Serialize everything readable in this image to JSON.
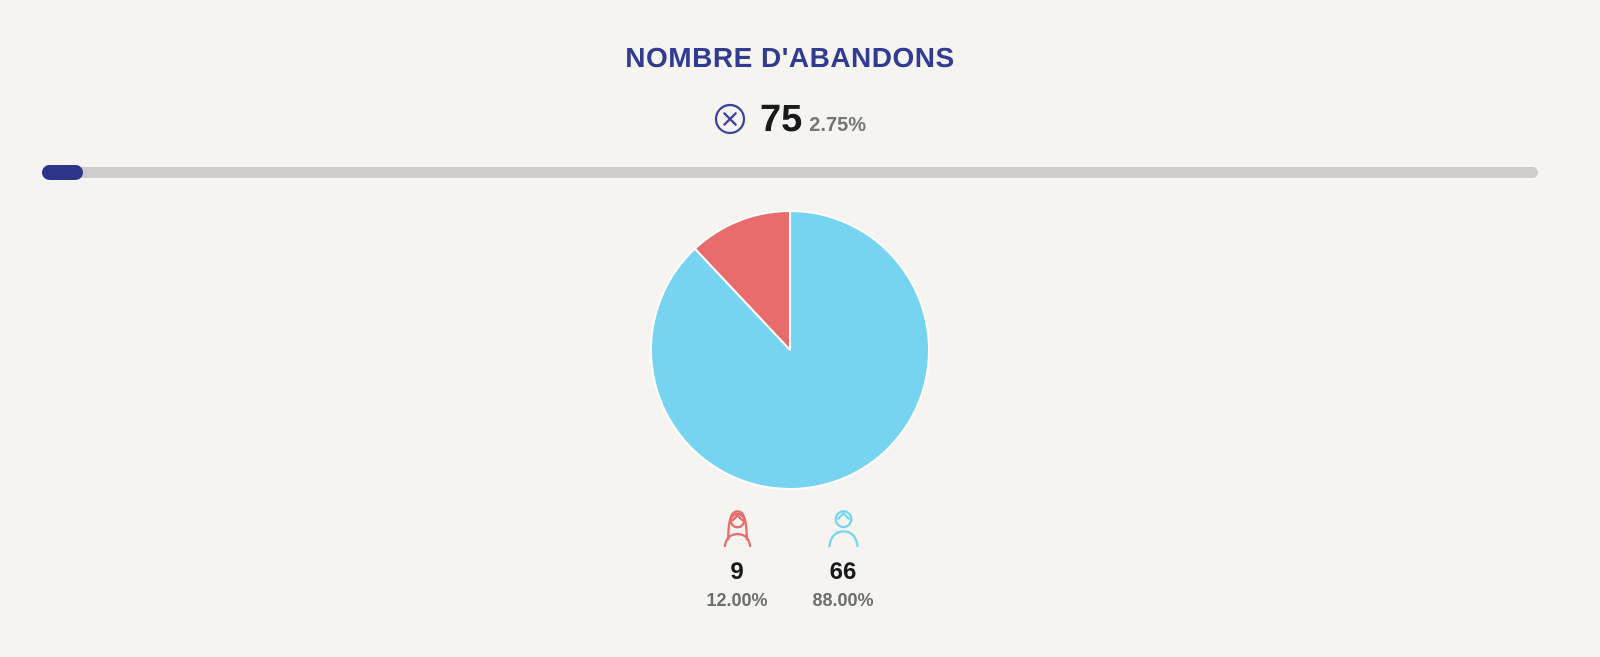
{
  "page": {
    "background_color": "#F5F4F1"
  },
  "header": {
    "title": "NOMBRE D'ABANDONS",
    "title_color": "#323B92"
  },
  "kpi": {
    "icon": "x-circle-icon",
    "icon_color": "#3A419B",
    "value": "75",
    "share": "2.75%",
    "value_color": "#1A1A1A",
    "share_color": "#757575"
  },
  "progress_bar": {
    "percent": 2.75,
    "fill_color": "#2D3588",
    "track_color": "#CDCCCA"
  },
  "chart_data": {
    "type": "pie",
    "title": "NOMBRE D'ABANDONS",
    "total": 75,
    "total_share_percent": 2.75,
    "direction": "counterclockwise_from_top",
    "legend_position": "bottom",
    "separator_color": "#FFFFFF",
    "segments": [
      {
        "label": "female",
        "icon": "female-person-icon",
        "value": 9,
        "percent": 12.0,
        "percent_label": "12.00%",
        "color": "#E86C6C"
      },
      {
        "label": "male",
        "icon": "male-person-icon",
        "value": 66,
        "percent": 88.0,
        "percent_label": "88.00%",
        "color": "#76D4F0"
      }
    ]
  },
  "legend": {
    "items": [
      {
        "icon": "female-person-icon",
        "value": "9",
        "percent": "12.00%",
        "color": "#E86C6C"
      },
      {
        "icon": "male-person-icon",
        "value": "66",
        "percent": "88.00%",
        "color": "#76D4F0"
      }
    ]
  }
}
